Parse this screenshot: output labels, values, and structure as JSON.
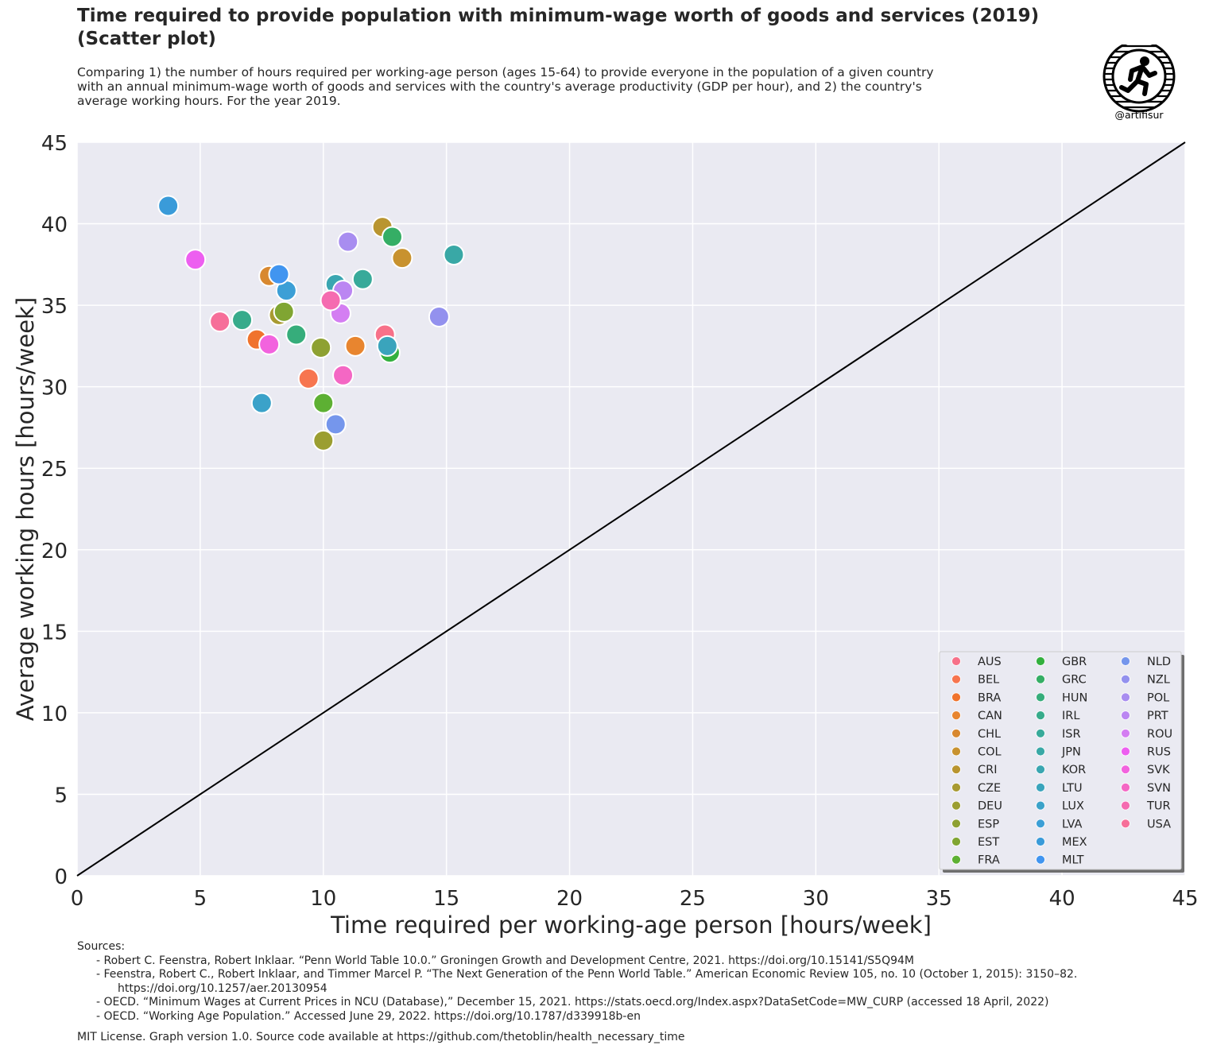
{
  "header": {
    "title_line1": "Time required to provide population with minimum-wage worth of goods and services (2019)",
    "title_line2": "(Scatter plot)",
    "subtitle_line1": "Comparing 1) the number of hours required per working-age person (ages 15-64) to provide everyone in the population of a given country",
    "subtitle_line2": "with an annual minimum-wage worth of goods and services with the country's average productivity (GDP per hour), and 2) the country's",
    "subtitle_line3": "average working hours. For the year 2019.",
    "logo_handle": "@artifisur",
    "logo_icon": "runner-in-wheel-icon"
  },
  "chart_data": {
    "type": "scatter",
    "xlabel": "Time required per working-age person [hours/week]",
    "ylabel": "Average working hours [hours/week]",
    "xlim": [
      0,
      45
    ],
    "ylim": [
      0,
      45
    ],
    "x_ticks": [
      "0",
      "5",
      "10",
      "15",
      "20",
      "25",
      "30",
      "35",
      "40",
      "45"
    ],
    "y_ticks": [
      "0",
      "5",
      "10",
      "15",
      "20",
      "25",
      "30",
      "35",
      "40",
      "45"
    ],
    "grid": true,
    "background": "#eaeaf2",
    "reference_line": {
      "from": [
        0,
        0
      ],
      "to": [
        45,
        45
      ],
      "color": "#000000"
    },
    "legend_position": "bottom-right",
    "legend_columns": 3,
    "points": [
      {
        "name": "AUS",
        "x": 12.5,
        "y": 33.2,
        "color": "#f77189"
      },
      {
        "name": "BEL",
        "x": 9.4,
        "y": 30.5,
        "color": "#f7754f"
      },
      {
        "name": "BRA",
        "x": 7.3,
        "y": 32.9,
        "color": "#f0732d"
      },
      {
        "name": "CAN",
        "x": 11.3,
        "y": 32.5,
        "color": "#e8852f"
      },
      {
        "name": "CHL",
        "x": 7.8,
        "y": 36.8,
        "color": "#d8882f"
      },
      {
        "name": "COL",
        "x": 13.2,
        "y": 37.9,
        "color": "#c8922f"
      },
      {
        "name": "CRI",
        "x": 12.4,
        "y": 39.8,
        "color": "#b99530"
      },
      {
        "name": "CZE",
        "x": 8.2,
        "y": 34.4,
        "color": "#a89a31"
      },
      {
        "name": "DEU",
        "x": 10.0,
        "y": 26.7,
        "color": "#9b9e31"
      },
      {
        "name": "ESP",
        "x": 9.9,
        "y": 32.4,
        "color": "#8ea132"
      },
      {
        "name": "EST",
        "x": 8.4,
        "y": 34.6,
        "color": "#80a532"
      },
      {
        "name": "FRA",
        "x": 10.0,
        "y": 29.0,
        "color": "#5db033"
      },
      {
        "name": "GBR",
        "x": 12.7,
        "y": 32.1,
        "color": "#33b03e"
      },
      {
        "name": "GRC",
        "x": 12.8,
        "y": 39.2,
        "color": "#35ae65"
      },
      {
        "name": "HUN",
        "x": 8.9,
        "y": 33.2,
        "color": "#36ad7b"
      },
      {
        "name": "IRL",
        "x": 6.7,
        "y": 34.1,
        "color": "#37ab8b"
      },
      {
        "name": "ISR",
        "x": 11.6,
        "y": 36.6,
        "color": "#38aa9a"
      },
      {
        "name": "JPN",
        "x": 15.3,
        "y": 38.1,
        "color": "#39a8a6"
      },
      {
        "name": "KOR",
        "x": 10.5,
        "y": 36.3,
        "color": "#3aa6b1"
      },
      {
        "name": "LTU",
        "x": 12.6,
        "y": 32.5,
        "color": "#3aa4bc"
      },
      {
        "name": "LUX",
        "x": 7.5,
        "y": 29.0,
        "color": "#3ba2c9"
      },
      {
        "name": "LVA",
        "x": 8.5,
        "y": 35.9,
        "color": "#3c9fd6"
      },
      {
        "name": "MEX",
        "x": 3.7,
        "y": 41.1,
        "color": "#3a9bd9"
      },
      {
        "name": "MLT",
        "x": 8.2,
        "y": 36.9,
        "color": "#4195f0"
      },
      {
        "name": "NLD",
        "x": 10.5,
        "y": 27.7,
        "color": "#7596ec"
      },
      {
        "name": "NZL",
        "x": 14.7,
        "y": 34.3,
        "color": "#9391ee"
      },
      {
        "name": "POL",
        "x": 11.0,
        "y": 38.9,
        "color": "#a88df0"
      },
      {
        "name": "PRT",
        "x": 10.8,
        "y": 35.9,
        "color": "#bb86f2"
      },
      {
        "name": "ROU",
        "x": 10.7,
        "y": 34.5,
        "color": "#d47ef2"
      },
      {
        "name": "RUS",
        "x": 4.8,
        "y": 37.8,
        "color": "#ed5ff0"
      },
      {
        "name": "SVK",
        "x": 7.8,
        "y": 32.6,
        "color": "#f263de"
      },
      {
        "name": "SVN",
        "x": 10.8,
        "y": 30.7,
        "color": "#f467c4"
      },
      {
        "name": "TUR",
        "x": 10.3,
        "y": 35.3,
        "color": "#f56bb0"
      },
      {
        "name": "USA",
        "x": 5.8,
        "y": 34.0,
        "color": "#f66f99"
      }
    ]
  },
  "sources": {
    "heading": "Sources:",
    "line1": "- Robert C. Feenstra, Robert Inklaar. “Penn World Table 10.0.” Groningen Growth and Development Centre, 2021. https://doi.org/10.15141/S5Q94M",
    "line2": "- Feenstra, Robert C., Robert Inklaar, and Timmer Marcel P. “The Next Generation of the Penn World Table.” American Economic Review 105, no. 10 (October 1, 2015): 3150–82.",
    "line2_cont": "https://doi.org/10.1257/aer.20130954",
    "line3": "- OECD. “Minimum Wages at Current Prices in NCU (Database),” December 15, 2021. https://stats.oecd.org/Index.aspx?DataSetCode=MW_CURP (accessed 18 April, 2022)",
    "line4": "- OECD. “Working Age Population.” Accessed June 29, 2022. https://doi.org/10.1787/d339918b-en"
  },
  "footer": {
    "license": "MIT License. Graph version 1.0. Source code available at https://github.com/thetoblin/health_necessary_time"
  }
}
